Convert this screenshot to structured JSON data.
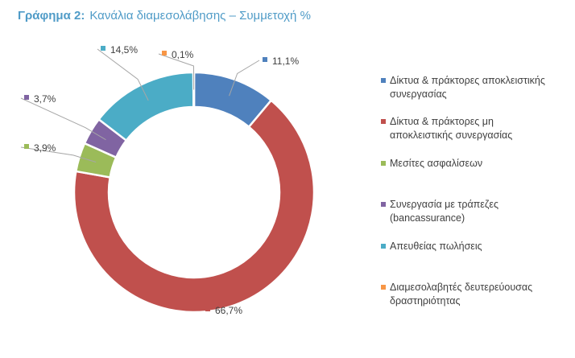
{
  "title": {
    "prefix": "Γράφημα 2:",
    "text": "Κανάλια διαμεσολάβησης – Συμμετοχή %"
  },
  "chart_data": {
    "type": "pie",
    "style": "donut",
    "legend_position": "right",
    "categories": [
      "Δίκτυα & πράκτορες αποκλειστικής συνεργασίας",
      "Δίκτυα & πράκτορες μη αποκλειστικής συνεργασίας",
      "Μεσίτες ασφαλίσεων",
      "Συνεργασία με τράπεζες (bancassurance)",
      "Απευθείας πωλήσεις",
      "Διαμεσολαβητές δευτερεύουσας δραστηριότητας"
    ],
    "legend_lines": [
      [
        "Δίκτυα & πράκτορες αποκλειστικής",
        "συνεργασίας"
      ],
      [
        "Δίκτυα & πράκτορες μη",
        "αποκλειστικής συνεργασίας"
      ],
      [
        "Μεσίτες ασφαλίσεων"
      ],
      [
        "Συνεργασία με τράπεζες",
        "(bancassurance)"
      ],
      [
        "Απευθείας πωλήσεις"
      ],
      [
        "Διαμεσολαβητές δευτερεύουσας",
        "δραστηριότητας"
      ]
    ],
    "values": [
      11.1,
      66.7,
      3.9,
      3.7,
      14.5,
      0.1
    ],
    "labels": [
      "11,1%",
      "66,7%",
      "3,9%",
      "3,7%",
      "14,5%",
      "0,1%"
    ],
    "colors": [
      "#4f81bd",
      "#c0504d",
      "#9bbb59",
      "#8064a2",
      "#4bacc6",
      "#f79646"
    ]
  }
}
